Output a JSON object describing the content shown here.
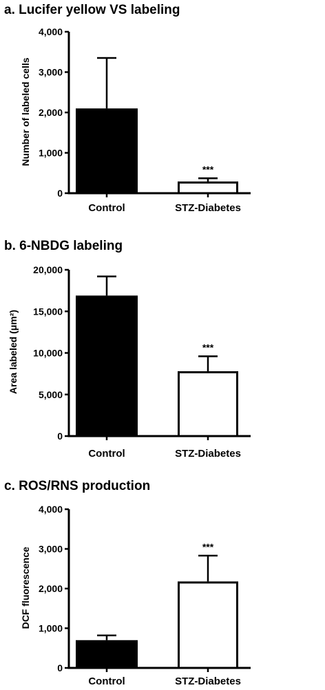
{
  "chart_data": [
    {
      "type": "bar",
      "title": "a. Lucifer yellow VS labeling",
      "ylabel": "Number of labeled cells",
      "ylim": [
        0,
        4000
      ],
      "yticks": [
        "0",
        "1,000",
        "2,000",
        "3,000",
        "4,000"
      ],
      "ytick_values": [
        0,
        1000,
        2000,
        3000,
        4000
      ],
      "categories": [
        "Control",
        "STZ-Diabetes"
      ],
      "values": [
        2100,
        290
      ],
      "errors": [
        1250,
        80
      ],
      "fills": [
        "#000000",
        "#ffffff"
      ],
      "annotations": [
        "",
        "***"
      ]
    },
    {
      "type": "bar",
      "title": "b. 6-NBDG labeling",
      "ylabel": "Area labeled (μm²)",
      "ylim": [
        0,
        20000
      ],
      "yticks": [
        "0",
        "5,000",
        "10,000",
        "15,000",
        "20,000"
      ],
      "ytick_values": [
        0,
        5000,
        10000,
        15000,
        20000
      ],
      "categories": [
        "Control",
        "STZ-Diabetes"
      ],
      "values": [
        16900,
        7800
      ],
      "errors": [
        2300,
        1800
      ],
      "fills": [
        "#000000",
        "#ffffff"
      ],
      "annotations": [
        "",
        "***"
      ]
    },
    {
      "type": "bar",
      "title": "c. ROS/RNS production",
      "ylabel": "DCF fluorescence",
      "ylim": [
        0,
        4000
      ],
      "yticks": [
        "0",
        "1,000",
        "2,000",
        "3,000",
        "4,000"
      ],
      "ytick_values": [
        0,
        1000,
        2000,
        3000,
        4000
      ],
      "categories": [
        "Control",
        "STZ-Diabetes"
      ],
      "values": [
        700,
        2180
      ],
      "errors": [
        120,
        650
      ],
      "fills": [
        "#000000",
        "#ffffff"
      ],
      "annotations": [
        "",
        "***"
      ]
    }
  ]
}
